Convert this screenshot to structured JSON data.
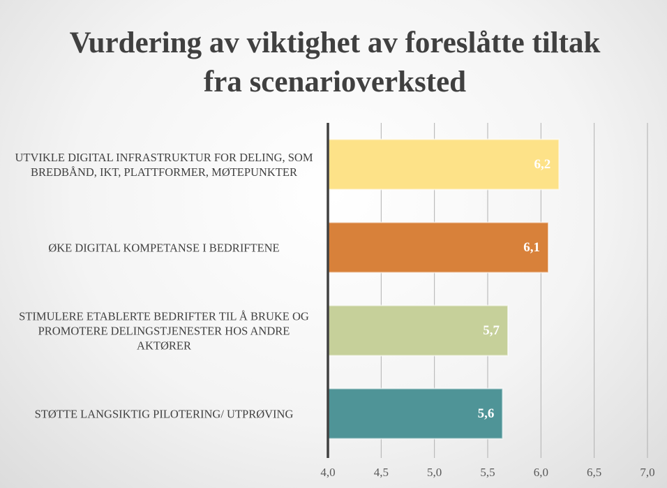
{
  "chart_data": {
    "type": "hbar",
    "title": "Vurdering av viktighet av foreslåtte tiltak fra scenarioverksted",
    "categories": [
      "UTVIKLE DIGITAL INFRASTRUKTUR FOR DELING, SOM BREDBÅND, IKT, PLATTFORMER, MØTEPUNKTER",
      "ØKE DIGITAL KOMPETANSE I BEDRIFTENE",
      "STIMULERE ETABLERTE BEDRIFTER TIL Å BRUKE OG PROMOTERE DELINGSTJENESTER HOS ANDRE AKTØRER",
      "STØTTE LANGSIKTIG PILOTERING/ UTPRØVING"
    ],
    "values": [
      6.17,
      6.07,
      5.69,
      5.64
    ],
    "value_labels": [
      "6,2",
      "6,1",
      "5,7",
      "5,6"
    ],
    "colors": [
      "#fde288",
      "#d8813a",
      "#c6d09a",
      "#4f9497"
    ],
    "xlim": [
      4.0,
      7.0
    ],
    "xticks": [
      {
        "value": 4.0,
        "label": "4,0"
      },
      {
        "value": 4.5,
        "label": "4,5"
      },
      {
        "value": 5.0,
        "label": "5,0"
      },
      {
        "value": 5.5,
        "label": "5,5"
      },
      {
        "value": 6.0,
        "label": "6,0"
      },
      {
        "value": 6.5,
        "label": "6,5"
      },
      {
        "value": 7.0,
        "label": "7,0"
      }
    ],
    "grid": true
  }
}
